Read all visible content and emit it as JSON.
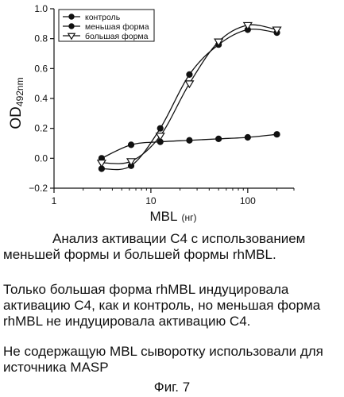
{
  "chart_data": {
    "type": "line",
    "x_scale": "log",
    "xlim": [
      1,
      300
    ],
    "ylim": [
      -0.2,
      1.0
    ],
    "x_ticks": [
      1,
      10,
      100
    ],
    "x_tick_labels": [
      "1",
      "10",
      "100"
    ],
    "y_ticks": [
      -0.2,
      0.0,
      0.2,
      0.4,
      0.6,
      0.8,
      1.0
    ],
    "y_tick_labels": [
      "−0.2",
      "0.0",
      "0.2",
      "0.4",
      "0.6",
      "0.8",
      "1.0"
    ],
    "xlabel": "MBL",
    "xlabel_unit": "(нг)",
    "ylabel": "OD",
    "ylabel_sub": "492nm",
    "grid": false,
    "legend_position": "top-left",
    "series": [
      {
        "name": "контроль",
        "marker": "circle-filled",
        "color": "#111111",
        "x": [
          3.1,
          6.25,
          12.5,
          25,
          50,
          100,
          200
        ],
        "y": [
          -0.07,
          -0.05,
          0.2,
          0.56,
          0.76,
          0.86,
          0.84
        ]
      },
      {
        "name": "меньшая форма",
        "marker": "circle-filled",
        "color": "#111111",
        "x": [
          3.1,
          6.25,
          12.5,
          25,
          50,
          100,
          200
        ],
        "y": [
          0.0,
          0.09,
          0.11,
          0.12,
          0.13,
          0.14,
          0.16
        ]
      },
      {
        "name": "большая форма",
        "marker": "triangle-open",
        "color": "#111111",
        "x": [
          3.1,
          6.25,
          12.5,
          25,
          50,
          100,
          200
        ],
        "y": [
          -0.03,
          -0.02,
          0.15,
          0.5,
          0.78,
          0.89,
          0.86
        ]
      }
    ]
  },
  "caption": {
    "line1": "Анализ активации C4 с использованием",
    "line2": "меньшей формы и большей формы rhMBL.",
    "line3": "Только большая форма rhMBL индуцировала",
    "line4": "активацию C4, как и контроль, но меньшая форма",
    "line5": "rhMBL не индуцировала активацию C4.",
    "line6": "Не содержащую MBL сыворотку использовали для",
    "line7": "источника MASP"
  },
  "figure_label": "Фиг. 7"
}
